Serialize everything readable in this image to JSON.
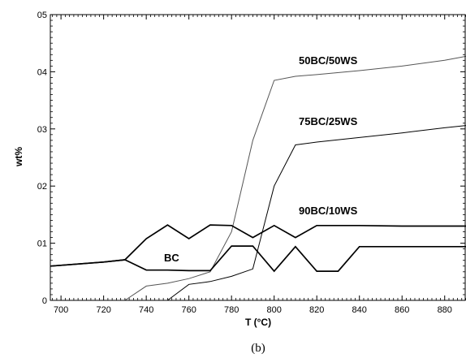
{
  "chart_data": {
    "type": "line",
    "xlabel": "T (°C)",
    "ylabel": "wt%",
    "xlim": [
      695,
      890
    ],
    "ylim": [
      0,
      5
    ],
    "xticks": [
      700,
      720,
      740,
      760,
      780,
      800,
      820,
      840,
      860,
      880
    ],
    "yticks": [
      0,
      1,
      2,
      3,
      4,
      5
    ],
    "ytick_labels": [
      "0",
      "01",
      "02",
      "03",
      "04",
      "05"
    ],
    "grid": false,
    "series": [
      {
        "name": "50BC/50WS",
        "stroke": "#555555",
        "width": 1,
        "x": [
          730,
          740,
          750,
          760,
          770,
          780,
          790,
          800,
          810,
          820,
          840,
          860,
          880,
          890
        ],
        "y": [
          0,
          0.25,
          0.3,
          0.38,
          0.5,
          1.2,
          2.8,
          3.85,
          3.92,
          3.95,
          4.02,
          4.1,
          4.2,
          4.27
        ]
      },
      {
        "name": "75BC/25WS",
        "stroke": "#000000",
        "width": 1,
        "x": [
          750,
          760,
          770,
          780,
          790,
          800,
          810,
          820,
          840,
          860,
          880,
          890
        ],
        "y": [
          0,
          0.28,
          0.33,
          0.42,
          0.55,
          2.0,
          2.72,
          2.77,
          2.85,
          2.93,
          3.02,
          3.06
        ]
      },
      {
        "name": "90BC/10WS",
        "stroke": "#000000",
        "width": 1.7,
        "x": [
          695,
          720,
          730,
          740,
          750,
          760,
          770,
          780,
          790,
          800,
          810,
          820,
          840,
          860,
          880,
          890
        ],
        "y": [
          0.6,
          0.67,
          0.71,
          1.08,
          1.32,
          1.08,
          1.32,
          1.31,
          1.1,
          1.31,
          1.1,
          1.31,
          1.31,
          1.3,
          1.3,
          1.3
        ]
      },
      {
        "name": "BC",
        "stroke": "#000000",
        "width": 1.7,
        "x": [
          695,
          720,
          730,
          740,
          750,
          760,
          770,
          780,
          790,
          800,
          810,
          820,
          830,
          840,
          860,
          880,
          890
        ],
        "y": [
          0.6,
          0.67,
          0.71,
          0.53,
          0.53,
          0.52,
          0.52,
          0.95,
          0.95,
          0.51,
          0.94,
          0.51,
          0.51,
          0.94,
          0.94,
          0.94,
          0.94
        ]
      }
    ],
    "annotations": [
      "50BC/50WS",
      "75BC/25WS",
      "90BC/10WS",
      "BC"
    ]
  },
  "caption": "(b)"
}
